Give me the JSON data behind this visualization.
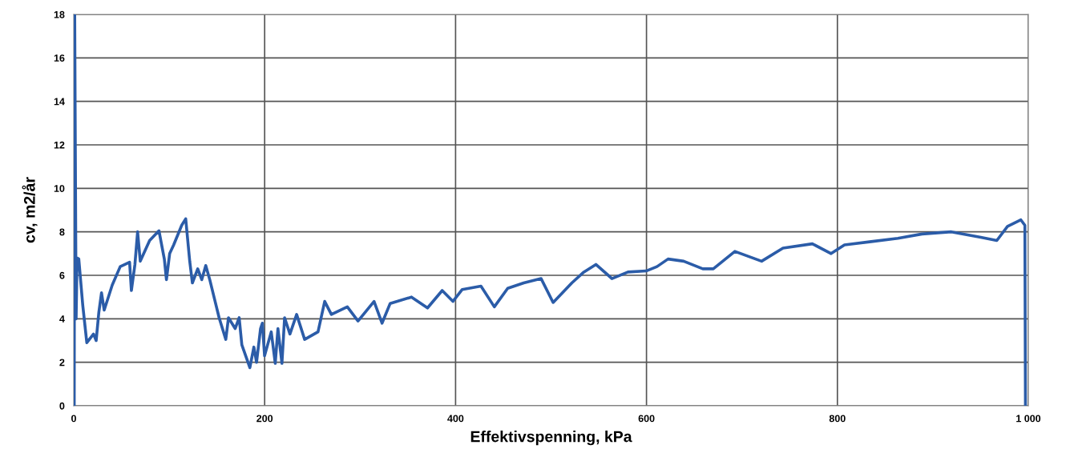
{
  "chart_data": {
    "type": "line",
    "xlabel": "Effektivspenning, kPa",
    "ylabel": "cv, m2/år",
    "xlim": [
      0,
      1000
    ],
    "ylim": [
      0,
      18
    ],
    "xticks": [
      0,
      200,
      400,
      600,
      800,
      {
        "value": 1000,
        "label": "1 000"
      }
    ],
    "yticks": [
      0,
      2,
      4,
      6,
      8,
      10,
      12,
      14,
      16,
      18
    ],
    "grid": true,
    "marker": "none",
    "line_style": "solid",
    "series": [
      {
        "color": "#2b5ca8",
        "x": [
          0.5,
          1,
          2.5,
          3.5,
          5.3,
          9.5,
          13.7,
          20.7,
          23.5,
          26.3,
          29.1,
          31.9,
          40.3,
          48.7,
          58.5,
          60.4,
          64.1,
          66.9,
          69.7,
          79.5,
          89.3,
          94.9,
          97.1,
          100.5,
          104.7,
          113.1,
          117.3,
          121.5,
          124.3,
          129.9,
          134.1,
          138.3,
          142.5,
          146.7,
          152.3,
          159.3,
          162.1,
          169.1,
          173.3,
          176.1,
          184.5,
          188.7,
          191.5,
          195.7,
          197.6,
          199.9,
          206.9,
          211.1,
          213.9,
          218.1,
          220.9,
          226.5,
          233.5,
          241.9,
          255.9,
          262.9,
          269.9,
          286.6,
          297.8,
          314.6,
          323,
          331.4,
          353.8,
          370.6,
          386,
          397.2,
          407,
          426.6,
          440.6,
          454.6,
          471.4,
          489.6,
          502.2,
          521.8,
          534.4,
          547,
          563.8,
          580.6,
          599.6,
          611,
          622.6,
          639,
          659,
          670,
          692.6,
          720.6,
          743,
          773.8,
          793.4,
          807.4,
          835.4,
          863.4,
          888.6,
          919.4,
          950.2,
          967,
          978.2,
          992.2,
          996.4,
          997
        ],
        "values": [
          0,
          18,
          4,
          6.8,
          6.75,
          4.6,
          2.9,
          3.3,
          3.0,
          4.3,
          5.2,
          4.4,
          5.55,
          6.4,
          6.6,
          5.3,
          6.5,
          8.0,
          6.65,
          7.6,
          8.05,
          6.75,
          5.8,
          7.0,
          7.4,
          8.3,
          8.6,
          6.65,
          5.65,
          6.3,
          5.8,
          6.45,
          5.8,
          5.05,
          4.05,
          3.05,
          4.05,
          3.55,
          4.05,
          2.8,
          1.75,
          2.7,
          2.0,
          3.55,
          3.8,
          2.3,
          3.4,
          1.95,
          3.55,
          1.95,
          4.05,
          3.3,
          4.2,
          3.05,
          3.4,
          4.8,
          4.2,
          4.55,
          3.9,
          4.8,
          3.8,
          4.7,
          5.0,
          4.5,
          5.3,
          4.8,
          5.35,
          5.5,
          4.55,
          5.4,
          5.65,
          5.85,
          4.75,
          5.65,
          6.15,
          6.5,
          5.85,
          6.15,
          6.2,
          6.4,
          6.75,
          6.65,
          6.3,
          6.3,
          7.1,
          6.65,
          7.25,
          7.45,
          7.0,
          7.4,
          7.55,
          7.7,
          7.9,
          8.0,
          7.75,
          7.6,
          8.25,
          8.55,
          8.3,
          0
        ]
      }
    ]
  }
}
